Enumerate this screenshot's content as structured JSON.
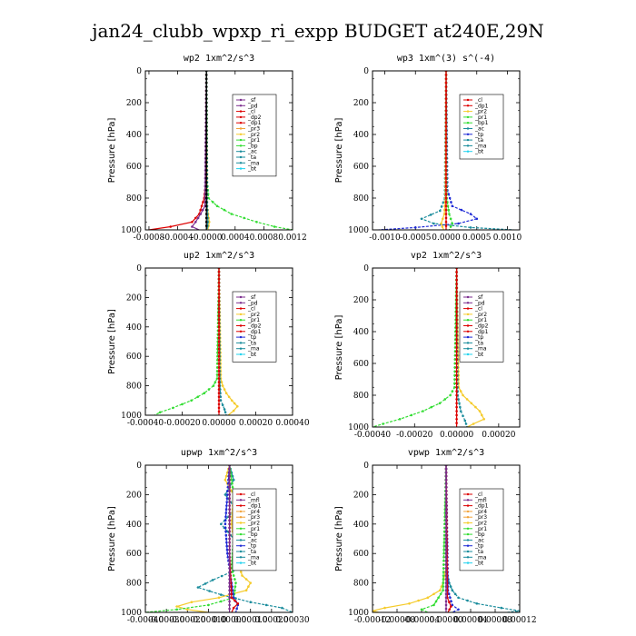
{
  "title": "jan24_clubb_wpxp_ri_expp  BUDGET at240E,29N",
  "y_label": "Pressure [hPa]",
  "colors": {
    "red": "#dd0000",
    "purple": "#7b2d8e",
    "orange": "#f2a33a",
    "yellow": "#f5cb2b",
    "green": "#33dd33",
    "teal": "#1a8c9c",
    "blue": "#1e2ad6",
    "cyan": "#22d3ee",
    "black": "#000000"
  },
  "chart_data": [
    {
      "type": "line",
      "title": "wp2  1xm^2/s^3",
      "ylabel": "Pressure [hPa]",
      "ylim": [
        1000,
        0
      ],
      "xlim": [
        -0.00085,
        0.0012
      ],
      "xticks": [
        "-0.0008",
        "-0.0004",
        "-0.0000",
        "0.0004",
        "0.0008",
        "0.0012"
      ],
      "xtick_values": [
        -0.0008,
        -0.0004,
        0,
        0.0004,
        0.0008,
        0.0012
      ],
      "yticks": [
        "0",
        "200",
        "400",
        "600",
        "800",
        "1000"
      ],
      "legend": [
        "_sf",
        "_pd",
        "_cl",
        "_dp2",
        "_dp1",
        "_pr3",
        "_pr2",
        "_pr1",
        "_bp",
        "_ac",
        "_ta",
        "_ma",
        "_bt"
      ],
      "series": [
        {
          "name": "_pr1",
          "color": "green",
          "pressure": [
            0,
            700,
            800,
            850,
            900,
            950,
            980,
            1000
          ],
          "values": [
            0,
            1e-05,
            3e-05,
            0.00015,
            0.00035,
            0.0007,
            0.00095,
            0.0012
          ]
        },
        {
          "name": "_dp1",
          "color": "red",
          "pressure": [
            0,
            700,
            800,
            900,
            950,
            980,
            1000
          ],
          "values": [
            0,
            -1e-05,
            -3e-05,
            -0.0001,
            -0.0002,
            -0.0005,
            -0.0008
          ]
        },
        {
          "name": "_pd",
          "color": "purple",
          "pressure": [
            0,
            850,
            900,
            950,
            980,
            1000
          ],
          "values": [
            0,
            -2e-05,
            -8e-05,
            -0.00015,
            -0.0002,
            -0.0001
          ]
        },
        {
          "name": "_pr2",
          "color": "yellow",
          "pressure": [
            0,
            850,
            950,
            1000
          ],
          "values": [
            0,
            1e-05,
            4e-05,
            2e-05
          ]
        },
        {
          "name": "_bp",
          "color": "teal",
          "pressure": [
            0,
            850,
            950,
            1000
          ],
          "values": [
            0,
            1e-05,
            2e-05,
            1e-05
          ]
        },
        {
          "name": "_bt",
          "color": "black",
          "pressure": [
            0,
            1000
          ],
          "values": [
            0,
            0
          ]
        }
      ]
    },
    {
      "type": "line",
      "title": "wp3  1xm^(3) s^(-4)",
      "ylabel": "Pressure [hPa]",
      "ylim": [
        1000,
        0
      ],
      "xlim": [
        -0.0012,
        0.0012
      ],
      "xticks": [
        "-0.0010",
        "-0.0005",
        "0.0000",
        "0.0005",
        "0.0010"
      ],
      "xtick_values": [
        -0.001,
        -0.0005,
        0,
        0.0005,
        0.001
      ],
      "yticks": [
        "0",
        "200",
        "400",
        "600",
        "800",
        "1000"
      ],
      "legend": [
        "_cl",
        "_dp1",
        "_pr2",
        "_pr1",
        "_bp1",
        "_ac",
        "_tp",
        "_ta",
        "_ma",
        "_bt"
      ],
      "series": [
        {
          "name": "_tp",
          "color": "blue",
          "pressure": [
            0,
            750,
            850,
            900,
            930,
            960,
            985,
            1000
          ],
          "values": [
            0,
            2e-05,
            0.0001,
            0.0004,
            0.0005,
            0.0002,
            -0.0005,
            -0.0011
          ]
        },
        {
          "name": "_ac",
          "color": "teal",
          "pressure": [
            0,
            800,
            880,
            930,
            960,
            985,
            1000
          ],
          "values": [
            0,
            -2e-05,
            -0.0001,
            -0.0004,
            -0.0002,
            0.0004,
            0.0011
          ]
        },
        {
          "name": "_pr1",
          "color": "green",
          "pressure": [
            0,
            800,
            900,
            960,
            1000
          ],
          "values": [
            0,
            1e-05,
            5e-05,
            0.0001,
            5e-05
          ]
        },
        {
          "name": "_pr2",
          "color": "yellow",
          "pressure": [
            0,
            800,
            900,
            960,
            1000
          ],
          "values": [
            0,
            -1e-05,
            -3e-05,
            -8e-05,
            -4e-05
          ]
        },
        {
          "name": "_cl",
          "color": "red",
          "pressure": [
            0,
            1000
          ],
          "values": [
            0,
            0
          ]
        }
      ]
    },
    {
      "type": "line",
      "title": "up2  1xm^2/s^3",
      "ylabel": "Pressure [hPa]",
      "ylim": [
        1000,
        0
      ],
      "xlim": [
        -0.0004,
        0.0004
      ],
      "xticks": [
        "-0.00040",
        "-0.00020",
        "0.00000",
        "0.00020",
        "0.00040"
      ],
      "xtick_values": [
        -0.0004,
        -0.0002,
        0,
        0.0002,
        0.0004
      ],
      "yticks": [
        "0",
        "200",
        "400",
        "600",
        "800",
        "1000"
      ],
      "legend": [
        "_sf",
        "_pd",
        "_cl",
        "_pr2",
        "_pr1",
        "_dp2",
        "_dp1",
        "_tp",
        "_ta",
        "_ma",
        "_bt"
      ],
      "series": [
        {
          "name": "_pr1",
          "color": "green",
          "pressure": [
            0,
            750,
            800,
            850,
            900,
            950,
            980,
            1000
          ],
          "values": [
            0,
            -1e-05,
            -3e-05,
            -8e-05,
            -0.00015,
            -0.00025,
            -0.00032,
            -0.00035
          ]
        },
        {
          "name": "_pr2",
          "color": "yellow",
          "pressure": [
            0,
            750,
            800,
            850,
            900,
            940,
            970,
            1000
          ],
          "values": [
            0,
            1e-05,
            2e-05,
            4e-05,
            7e-05,
            0.0001,
            8e-05,
            5e-05
          ]
        },
        {
          "name": "_ta",
          "color": "teal",
          "pressure": [
            0,
            800,
            900,
            960,
            1000
          ],
          "values": [
            0,
            5e-06,
            1e-05,
            3e-05,
            4e-05
          ]
        },
        {
          "name": "_dp1",
          "color": "red",
          "pressure": [
            0,
            1000
          ],
          "values": [
            0,
            0
          ]
        }
      ]
    },
    {
      "type": "line",
      "title": "vp2  1xm^2/s^3",
      "ylabel": "Pressure [hPa]",
      "ylim": [
        1000,
        0
      ],
      "xlim": [
        -0.0004,
        0.0003
      ],
      "xticks": [
        "-0.00040",
        "-0.00020",
        "0.00000",
        "0.00020"
      ],
      "xtick_values": [
        -0.0004,
        -0.0002,
        0,
        0.0002
      ],
      "yticks": [
        "0",
        "200",
        "400",
        "600",
        "800",
        "1000"
      ],
      "legend": [
        "_sf",
        "_pd",
        "_cl",
        "_pr2",
        "_pr1",
        "_dp2",
        "_dp1",
        "_tp",
        "_ta",
        "_ma",
        "_bt"
      ],
      "series": [
        {
          "name": "_pr1",
          "color": "green",
          "pressure": [
            0,
            750,
            800,
            850,
            900,
            950,
            980,
            1000
          ],
          "values": [
            0,
            -1e-05,
            -3e-05,
            -8e-05,
            -0.00016,
            -0.00027,
            -0.00035,
            -0.0004
          ]
        },
        {
          "name": "_pr2",
          "color": "yellow",
          "pressure": [
            0,
            750,
            800,
            850,
            900,
            950,
            980,
            1000
          ],
          "values": [
            0,
            1e-05,
            3e-05,
            7e-05,
            0.00011,
            0.00013,
            8e-05,
            5e-05
          ]
        },
        {
          "name": "_ta",
          "color": "teal",
          "pressure": [
            0,
            800,
            900,
            960,
            1000
          ],
          "values": [
            0,
            5e-06,
            2e-05,
            4e-05,
            5e-05
          ]
        },
        {
          "name": "_dp1",
          "color": "red",
          "pressure": [
            0,
            1000
          ],
          "values": [
            0,
            0
          ]
        }
      ]
    },
    {
      "type": "line",
      "title": "upwp  1xm^2/s^3",
      "ylabel": "Pressure [hPa]",
      "ylim": [
        1000,
        0
      ],
      "xlim": [
        -0.0004,
        0.0003
      ],
      "xticks": [
        "-0.00040",
        "-0.00030",
        "-0.00020",
        "-0.00010",
        "0.00000",
        "0.00010",
        "0.00020",
        "0.00030"
      ],
      "xtick_values": [
        -0.0004,
        -0.0003,
        -0.0002,
        -0.0001,
        0,
        0.0001,
        0.0002,
        0.0003
      ],
      "yticks": [
        "0",
        "200",
        "400",
        "600",
        "800",
        "1000"
      ],
      "legend": [
        "_cl",
        "_mfl",
        "_dp1",
        "_pr4",
        "_pr3",
        "_pr2",
        "_pr1",
        "_bp",
        "_ac",
        "_tp",
        "_ta",
        "_ma",
        "_bt"
      ],
      "series": [
        {
          "name": "_ta",
          "color": "teal",
          "pressure": [
            0,
            100,
            200,
            300,
            400,
            500,
            600,
            700,
            780,
            830,
            880,
            930,
            970,
            1000
          ],
          "values": [
            0,
            2e-05,
            -2e-05,
            3e-05,
            -4e-05,
            2e-05,
            3e-05,
            5e-05,
            -8e-05,
            -0.00015,
            -4e-05,
            0.0001,
            0.00025,
            0.0003
          ]
        },
        {
          "name": "_pr2",
          "color": "yellow",
          "pressure": [
            0,
            100,
            200,
            400,
            600,
            750,
            800,
            850,
            900,
            930,
            960,
            980,
            1000
          ],
          "values": [
            0,
            -2e-05,
            2e-05,
            1e-05,
            3e-05,
            6e-05,
            0.0001,
            8e-05,
            -5e-05,
            -0.00018,
            -0.00025,
            -0.0002,
            -0.0001
          ]
        },
        {
          "name": "_pr1",
          "color": "green",
          "pressure": [
            0,
            200,
            300,
            400,
            500,
            700,
            800,
            900,
            950,
            980,
            1000
          ],
          "values": [
            0,
            2e-05,
            4e-05,
            3e-05,
            2e-05,
            1e-05,
            3e-05,
            2e-05,
            -0.0001,
            -0.00025,
            -0.0004
          ]
        },
        {
          "name": "_tp",
          "color": "blue",
          "pressure": [
            0,
            200,
            400,
            600,
            800,
            900,
            950,
            1000
          ],
          "values": [
            0,
            -1e-05,
            -2e-05,
            -1e-05,
            1e-05,
            2e-05,
            4e-05,
            3e-05
          ]
        },
        {
          "name": "_cl",
          "color": "red",
          "pressure": [
            0,
            600,
            900,
            940,
            970,
            1000
          ],
          "values": [
            0,
            0,
            1e-05,
            4e-05,
            2e-05,
            1e-05
          ]
        },
        {
          "name": "_mfl",
          "color": "purple",
          "pressure": [
            0,
            1000
          ],
          "values": [
            0,
            0
          ]
        }
      ]
    },
    {
      "type": "line",
      "title": "vpwp  1xm^2/s^3",
      "ylabel": "Pressure [hPa]",
      "ylim": [
        1000,
        0
      ],
      "xlim": [
        -0.00012,
        0.00012
      ],
      "xticks": [
        "-0.00012",
        "-0.00008",
        "-0.00004",
        "0.00000",
        "0.00004",
        "0.00008",
        "0.00012"
      ],
      "xtick_values": [
        -0.00012,
        -8e-05,
        -4e-05,
        0,
        4e-05,
        8e-05,
        0.00012
      ],
      "yticks": [
        "0",
        "200",
        "400",
        "600",
        "800",
        "1000"
      ],
      "legend": [
        "_cl",
        "_mfl",
        "_dp1",
        "_pr4",
        "_pr3",
        "_pr2",
        "_pr1",
        "_bp",
        "_ac",
        "_tp",
        "_ta",
        "_ma",
        "_bt"
      ],
      "series": [
        {
          "name": "_pr2",
          "color": "yellow",
          "pressure": [
            0,
            700,
            800,
            850,
            900,
            940,
            970,
            990,
            1000
          ],
          "values": [
            0,
            0,
            -5e-06,
            -1e-05,
            -3e-05,
            -6e-05,
            -0.0001,
            -0.00012,
            -0.00011
          ]
        },
        {
          "name": "_ta",
          "color": "teal",
          "pressure": [
            0,
            700,
            800,
            850,
            900,
            940,
            970,
            990,
            1000
          ],
          "values": [
            0,
            0,
            5e-06,
            1e-05,
            2e-05,
            5e-05,
            9e-05,
            0.00012,
            0.0001
          ]
        },
        {
          "name": "_pr1",
          "color": "green",
          "pressure": [
            0,
            850,
            950,
            980,
            1000
          ],
          "values": [
            0,
            -5e-06,
            -2e-05,
            -4e-05,
            -3e-05
          ]
        },
        {
          "name": "_tp",
          "color": "blue",
          "pressure": [
            0,
            850,
            950,
            980,
            1000
          ],
          "values": [
            0,
            3e-06,
            1e-05,
            2e-05,
            1e-05
          ]
        },
        {
          "name": "_cl",
          "color": "red",
          "pressure": [
            0,
            900,
            960,
            1000
          ],
          "values": [
            0,
            2e-06,
            8e-06,
            3e-06
          ]
        },
        {
          "name": "_mfl",
          "color": "purple",
          "pressure": [
            0,
            1000
          ],
          "values": [
            0,
            0
          ]
        }
      ]
    }
  ]
}
